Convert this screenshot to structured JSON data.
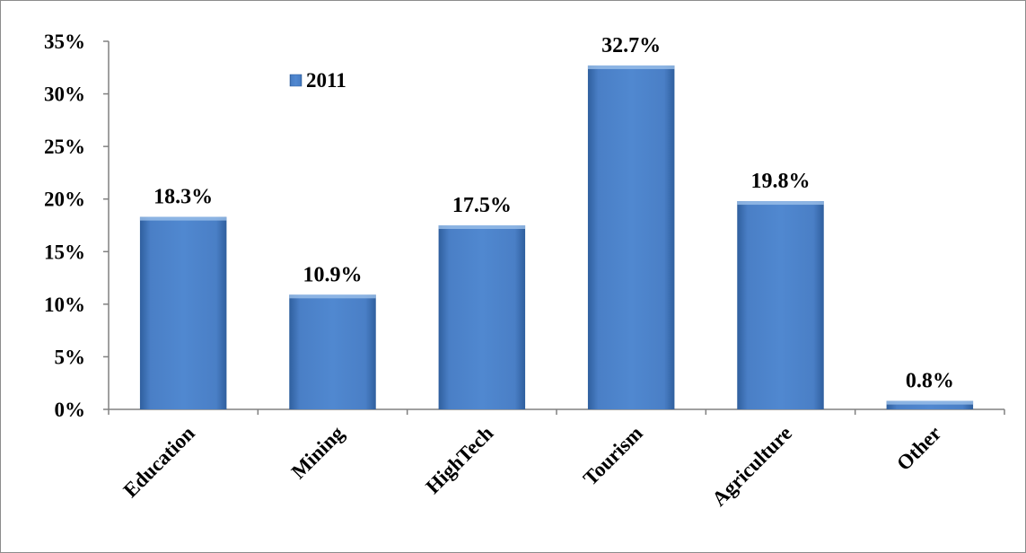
{
  "chart_data": {
    "type": "bar",
    "categories": [
      "Education",
      "Mining",
      "HighTech",
      "Tourism",
      "Agriculture",
      "Other"
    ],
    "series": [
      {
        "name": "2011",
        "values": [
          18.3,
          10.9,
          17.5,
          32.7,
          19.8,
          0.8
        ]
      }
    ],
    "data_labels": [
      "18.3%",
      "10.9%",
      "17.5%",
      "32.7%",
      "19.8%",
      "0.8%"
    ],
    "y_ticks": [
      "0%",
      "5%",
      "10%",
      "15%",
      "20%",
      "25%",
      "30%",
      "35%"
    ],
    "ylim": [
      0,
      35
    ],
    "y_unit": "%",
    "grid": false,
    "legend_position": "top-left",
    "bar_color": "#4a7fc6",
    "bar_color_dark": "#2f5f9e"
  }
}
